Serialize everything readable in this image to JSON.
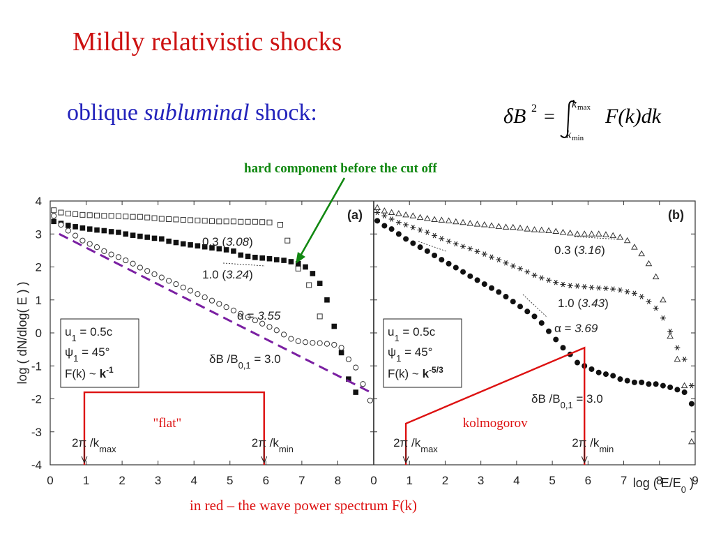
{
  "slide": {
    "title": "Mildly relativistic shocks",
    "subtitle_pre": "oblique ",
    "subtitle_em": "subluminal",
    "subtitle_post": " shock:",
    "hard_note": "hard component before the cut off",
    "footer_note": "in red – the wave power spectrum F(k)",
    "formula": {
      "lhs": "δB",
      "power": "2",
      "equals": "=",
      "upper": "max",
      "lower": "min",
      "integrand": "F(k)dk"
    }
  },
  "colors": {
    "title": "#cc1111",
    "subtitle": "#2222bb",
    "note": "#118811",
    "red_line": "#dd1111",
    "fit": "#7a1fa2"
  },
  "chart_data": {
    "type": "scatter",
    "ylabel": "log ( dN/dlog( E ) )",
    "xlabel": "log ( E/E",
    "xlabel_sub": "0",
    "xlabel_tail": " )",
    "y_ticks": [
      "4",
      "3",
      "2",
      "1",
      "0",
      "-1",
      "-2",
      "-3",
      "-4"
    ],
    "ylim": [
      -4,
      4
    ],
    "panels": [
      {
        "id": "a",
        "tag": "(a)",
        "xlim": [
          0,
          9
        ],
        "x_ticks": [
          "0",
          "1",
          "2",
          "3",
          "4",
          "5",
          "6",
          "7",
          "8"
        ],
        "info": {
          "u": "u",
          "u_sub": "1",
          "u_val": " = 0.5c",
          "psi": "ψ",
          "psi_sub": "1",
          "psi_val": " = 45°",
          "fk": "F(k) ~ ",
          "fk_bold": "k",
          "fk_exp": "-1"
        },
        "labels": {
          "l1": "0.3 (",
          "l1i": "3.08",
          "l2": "1.0 (",
          "l2i": "3.24",
          "alpha": "α = ",
          "alphai": "3.55",
          "db": "δB /B",
          "db_sub": "0,1",
          "db_val": " = 3.0"
        },
        "spectrum": {
          "name": "\"flat\"",
          "kmax": "2π /k",
          "kmax_sub": "max",
          "kmin": "2π /k",
          "kmin_sub": "min",
          "x_kmax": 0.95,
          "x_kmin": 5.95,
          "level": -1.8,
          "level_left": -1.8
        },
        "fit": {
          "x": [
            0.25,
            9.0
          ],
          "y": [
            3.0,
            -1.85
          ]
        },
        "series": [
          {
            "marker": "open-square",
            "x": [
              0.1,
              0.3,
              0.5,
              0.7,
              0.9,
              1.1,
              1.3,
              1.5,
              1.7,
              1.9,
              2.1,
              2.3,
              2.5,
              2.7,
              2.9,
              3.1,
              3.3,
              3.5,
              3.7,
              3.9,
              4.1,
              4.3,
              4.5,
              4.7,
              4.9,
              5.1,
              5.3,
              5.5,
              5.7,
              5.9,
              6.1,
              6.4,
              6.6,
              6.9,
              7.2,
              7.5
            ],
            "y": [
              3.72,
              3.65,
              3.62,
              3.6,
              3.58,
              3.57,
              3.56,
              3.55,
              3.55,
              3.54,
              3.53,
              3.52,
              3.52,
              3.5,
              3.48,
              3.46,
              3.45,
              3.44,
              3.43,
              3.42,
              3.41,
              3.4,
              3.39,
              3.38,
              3.38,
              3.38,
              3.37,
              3.37,
              3.37,
              3.36,
              3.35,
              3.28,
              2.8,
              1.95,
              1.45,
              0.5
            ]
          },
          {
            "marker": "filled-square",
            "x": [
              0.1,
              0.3,
              0.5,
              0.7,
              0.9,
              1.1,
              1.3,
              1.5,
              1.7,
              1.9,
              2.1,
              2.3,
              2.5,
              2.7,
              2.9,
              3.1,
              3.3,
              3.5,
              3.7,
              3.9,
              4.1,
              4.3,
              4.5,
              4.7,
              4.9,
              5.1,
              5.3,
              5.5,
              5.7,
              5.9,
              6.1,
              6.3,
              6.5,
              6.7,
              6.9,
              7.1,
              7.3,
              7.5,
              7.7,
              7.9,
              8.1,
              8.3,
              8.5
            ],
            "y": [
              3.38,
              3.32,
              3.26,
              3.22,
              3.18,
              3.15,
              3.12,
              3.1,
              3.07,
              3.05,
              3.0,
              2.96,
              2.93,
              2.9,
              2.87,
              2.85,
              2.78,
              2.74,
              2.7,
              2.67,
              2.64,
              2.61,
              2.58,
              2.55,
              2.52,
              2.48,
              2.36,
              2.32,
              2.29,
              2.27,
              2.25,
              2.22,
              2.2,
              2.16,
              2.1,
              2.0,
              1.8,
              1.5,
              1.0,
              0.2,
              -0.6,
              -1.4,
              -1.8
            ]
          },
          {
            "marker": "open-circle",
            "x": [
              0.1,
              0.3,
              0.5,
              0.7,
              0.9,
              1.1,
              1.3,
              1.5,
              1.7,
              1.9,
              2.1,
              2.3,
              2.5,
              2.7,
              2.9,
              3.1,
              3.3,
              3.5,
              3.7,
              3.9,
              4.1,
              4.3,
              4.5,
              4.7,
              4.9,
              5.1,
              5.3,
              5.5,
              5.7,
              5.9,
              6.1,
              6.3,
              6.5,
              6.7,
              6.9,
              7.1,
              7.3,
              7.5,
              7.7,
              7.9,
              8.1,
              8.3,
              8.5,
              8.7,
              8.9
            ],
            "y": [
              3.55,
              3.28,
              3.1,
              2.95,
              2.8,
              2.7,
              2.6,
              2.48,
              2.38,
              2.3,
              2.2,
              2.1,
              1.98,
              1.88,
              1.78,
              1.68,
              1.58,
              1.48,
              1.38,
              1.28,
              1.18,
              1.08,
              0.98,
              0.88,
              0.78,
              0.68,
              0.58,
              0.48,
              0.38,
              0.28,
              0.18,
              0.08,
              -0.05,
              -0.18,
              -0.25,
              -0.28,
              -0.3,
              -0.31,
              -0.33,
              -0.36,
              -0.45,
              -0.8,
              -1.05,
              -1.55,
              -2.05
            ]
          }
        ]
      },
      {
        "id": "b",
        "tag": "(b)",
        "xlim": [
          0,
          9
        ],
        "x_ticks": [
          "0",
          "1",
          "2",
          "3",
          "4",
          "5",
          "6",
          "7",
          "8",
          "9"
        ],
        "info": {
          "u": "u",
          "u_sub": "1",
          "u_val": " = 0.5c",
          "psi": "ψ",
          "psi_sub": "1",
          "psi_val": " = 45°",
          "fk": "F(k) ~ ",
          "fk_bold": "k",
          "fk_exp": "-5/3"
        },
        "labels": {
          "l1": "0.3 (",
          "l1i": "3.16",
          "l2": "1.0 (",
          "l2i": "3.43",
          "alpha": "α = ",
          "alphai": "3.69",
          "db": "δB /B",
          "db_sub": "0,1",
          "db_val": " = 3.0"
        },
        "spectrum": {
          "name": "kolmogorov",
          "kmax": "2π /k",
          "kmax_sub": "max",
          "kmin": "2π /k",
          "kmin_sub": "min",
          "x_kmax": 0.9,
          "x_kmin": 5.9,
          "level": -0.45,
          "level_left": -2.75
        },
        "series": [
          {
            "marker": "open-triangle",
            "x": [
              0.1,
              0.3,
              0.5,
              0.7,
              0.9,
              1.1,
              1.3,
              1.5,
              1.7,
              1.9,
              2.1,
              2.3,
              2.5,
              2.7,
              2.9,
              3.1,
              3.3,
              3.5,
              3.7,
              3.9,
              4.1,
              4.3,
              4.5,
              4.7,
              4.9,
              5.1,
              5.3,
              5.5,
              5.7,
              5.9,
              6.1,
              6.3,
              6.5,
              6.7,
              6.9,
              7.1,
              7.3,
              7.5,
              7.7,
              7.9,
              8.1,
              8.3,
              8.5,
              8.7,
              8.9
            ],
            "y": [
              3.8,
              3.7,
              3.65,
              3.62,
              3.58,
              3.55,
              3.5,
              3.47,
              3.44,
              3.42,
              3.4,
              3.37,
              3.35,
              3.32,
              3.3,
              3.28,
              3.25,
              3.23,
              3.21,
              3.2,
              3.18,
              3.15,
              3.13,
              3.12,
              3.1,
              3.08,
              3.05,
              3.03,
              3.0,
              3.0,
              3.0,
              3.0,
              2.98,
              2.95,
              2.9,
              2.8,
              2.6,
              2.4,
              2.1,
              1.7,
              1.0,
              -0.1,
              -0.8,
              -1.6,
              -3.3
            ]
          },
          {
            "marker": "asterisk",
            "x": [
              0.1,
              0.3,
              0.5,
              0.7,
              0.9,
              1.1,
              1.3,
              1.5,
              1.7,
              1.9,
              2.1,
              2.3,
              2.5,
              2.7,
              2.9,
              3.1,
              3.3,
              3.5,
              3.7,
              3.9,
              4.1,
              4.3,
              4.5,
              4.7,
              4.9,
              5.1,
              5.3,
              5.5,
              5.7,
              5.9,
              6.1,
              6.3,
              6.5,
              6.7,
              6.9,
              7.1,
              7.3,
              7.5,
              7.7,
              7.9,
              8.1,
              8.3,
              8.5,
              8.7,
              8.9
            ],
            "y": [
              3.65,
              3.55,
              3.45,
              3.35,
              3.28,
              3.2,
              3.12,
              3.05,
              2.95,
              2.86,
              2.78,
              2.7,
              2.62,
              2.55,
              2.47,
              2.39,
              2.3,
              2.22,
              2.12,
              2.03,
              1.95,
              1.85,
              1.75,
              1.67,
              1.6,
              1.53,
              1.47,
              1.43,
              1.42,
              1.4,
              1.38,
              1.36,
              1.35,
              1.33,
              1.3,
              1.25,
              1.2,
              1.1,
              0.95,
              0.75,
              0.45,
              0.05,
              -0.45,
              -0.8,
              -1.6
            ]
          },
          {
            "marker": "filled-circle",
            "x": [
              0.1,
              0.3,
              0.5,
              0.7,
              0.9,
              1.1,
              1.3,
              1.5,
              1.7,
              1.9,
              2.1,
              2.3,
              2.5,
              2.7,
              2.9,
              3.1,
              3.3,
              3.5,
              3.7,
              3.9,
              4.1,
              4.3,
              4.5,
              4.7,
              4.9,
              5.1,
              5.3,
              5.5,
              5.7,
              5.9,
              6.1,
              6.3,
              6.5,
              6.7,
              6.9,
              7.1,
              7.3,
              7.5,
              7.7,
              7.9,
              8.1,
              8.3,
              8.5,
              8.7,
              8.9
            ],
            "y": [
              3.4,
              3.25,
              3.15,
              3.0,
              2.85,
              2.72,
              2.6,
              2.48,
              2.35,
              2.22,
              2.1,
              1.98,
              1.85,
              1.72,
              1.6,
              1.48,
              1.36,
              1.24,
              1.1,
              0.95,
              0.8,
              0.65,
              0.5,
              0.3,
              0.05,
              -0.2,
              -0.45,
              -0.65,
              -0.9,
              -1.0,
              -1.1,
              -1.2,
              -1.25,
              -1.3,
              -1.4,
              -1.45,
              -1.5,
              -1.5,
              -1.55,
              -1.55,
              -1.6,
              -1.65,
              -1.72,
              -1.8,
              -2.15
            ]
          }
        ]
      }
    ]
  }
}
